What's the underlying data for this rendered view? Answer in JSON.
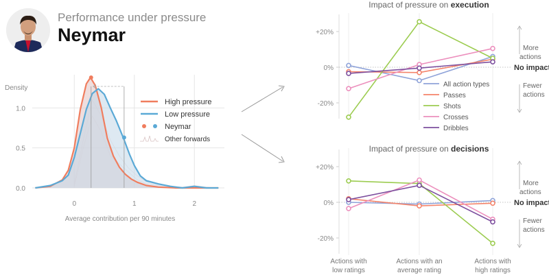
{
  "header": {
    "subtitle": "Performance under pressure",
    "player_name": "Neymar",
    "avatar_icon": "player-photo-icon"
  },
  "colors": {
    "high_pressure": "#f07d5e",
    "low_pressure": "#5aa9d6",
    "all_actions": "#8fa3d9",
    "passes": "#f4836a",
    "shots": "#9ccc50",
    "crosses": "#ec8fbd",
    "dribbles": "#7d4f9e",
    "density_fill": "#d4cdce",
    "axis_text": "#888888"
  },
  "chart_data": [
    {
      "id": "density",
      "type": "area",
      "title": "",
      "ylabel": "Density",
      "xlabel": "Average contribution per 90 minutes",
      "xlim": [
        -0.7,
        2.5
      ],
      "ylim": [
        0,
        1.5
      ],
      "xticks": [
        "0",
        "1",
        "2"
      ],
      "yticks": [
        "0.0",
        "0.5",
        "1.0"
      ],
      "series": [
        {
          "name": "High pressure",
          "x": [
            -0.65,
            -0.4,
            -0.2,
            -0.1,
            0.0,
            0.1,
            0.2,
            0.27,
            0.35,
            0.45,
            0.55,
            0.65,
            0.75,
            0.85,
            0.95,
            1.05,
            1.2,
            1.4,
            1.7,
            2.0,
            2.4
          ],
          "y": [
            0.0,
            0.02,
            0.1,
            0.22,
            0.5,
            0.98,
            1.3,
            1.38,
            1.28,
            1.0,
            0.62,
            0.4,
            0.26,
            0.17,
            0.11,
            0.07,
            0.03,
            0.01,
            0.0,
            0.0,
            0.0
          ]
        },
        {
          "name": "Low pressure",
          "x": [
            -0.65,
            -0.4,
            -0.2,
            -0.1,
            0.0,
            0.1,
            0.2,
            0.3,
            0.4,
            0.5,
            0.6,
            0.7,
            0.82,
            0.92,
            1.0,
            1.1,
            1.2,
            1.4,
            1.6,
            1.8,
            2.0,
            2.2,
            2.4
          ],
          "y": [
            0.0,
            0.03,
            0.09,
            0.16,
            0.38,
            0.68,
            0.98,
            1.18,
            1.24,
            1.17,
            1.0,
            0.84,
            0.62,
            0.42,
            0.28,
            0.15,
            0.09,
            0.05,
            0.02,
            0.0,
            0.02,
            0.0,
            0.0
          ]
        }
      ],
      "markers": [
        {
          "series": "High pressure",
          "x": 0.28,
          "y": 1.38
        },
        {
          "series": "Low pressure",
          "x": 0.83,
          "y": 0.63
        }
      ],
      "legend": {
        "placement": "right",
        "entries": [
          {
            "label": "High pressure",
            "kind": "line",
            "color_key": "high_pressure"
          },
          {
            "label": "Low pressure",
            "kind": "line",
            "color_key": "low_pressure"
          },
          {
            "label": "Neymar",
            "kind": "dots"
          },
          {
            "label": "Other forwards",
            "kind": "spiky-line"
          }
        ]
      }
    },
    {
      "id": "execution",
      "type": "line",
      "title_prefix": "Impact of pressure on ",
      "title_bold": "execution",
      "categories": [
        "Actions with low ratings",
        "Actions with an average rating",
        "Actions with high ratings"
      ],
      "ylim": [
        -30,
        30
      ],
      "yticks": [
        "+20%",
        "0%",
        "-20%"
      ],
      "series": [
        {
          "name": "All action types",
          "values": [
            1,
            -7.5,
            6
          ]
        },
        {
          "name": "Passes",
          "values": [
            -2.5,
            -3,
            4.5
          ]
        },
        {
          "name": "Shots",
          "values": [
            -28,
            25.5,
            5
          ]
        },
        {
          "name": "Crosses",
          "values": [
            -12,
            1.5,
            10.5
          ]
        },
        {
          "name": "Dribbles",
          "values": [
            -3.5,
            -0.5,
            3
          ]
        }
      ],
      "legend": {
        "placement": "bottom-right",
        "entries": [
          {
            "label": "All action types",
            "color_key": "all_actions"
          },
          {
            "label": "Passes",
            "color_key": "passes"
          },
          {
            "label": "Shots",
            "color_key": "shots"
          },
          {
            "label": "Crosses",
            "color_key": "crosses"
          },
          {
            "label": "Dribbles",
            "color_key": "dribbles"
          }
        ]
      },
      "annotations": {
        "more": "More actions",
        "fewer": "Fewer actions",
        "no_impact": "No impact"
      }
    },
    {
      "id": "decisions",
      "type": "line",
      "title_prefix": "Impact of pressure on ",
      "title_bold": "decisions",
      "categories": [
        "Actions with low ratings",
        "Actions with an average rating",
        "Actions with high ratings"
      ],
      "ylim": [
        -30,
        30
      ],
      "yticks": [
        "+20%",
        "0%",
        "-20%"
      ],
      "series": [
        {
          "name": "All action types",
          "values": [
            0,
            -1,
            1
          ]
        },
        {
          "name": "Passes",
          "values": [
            2,
            -2,
            -0.5
          ]
        },
        {
          "name": "Shots",
          "values": [
            12,
            10.5,
            -23
          ]
        },
        {
          "name": "Crosses",
          "values": [
            -3.5,
            12.5,
            -9.5
          ]
        },
        {
          "name": "Dribbles",
          "values": [
            1.5,
            9.5,
            -11
          ]
        }
      ],
      "annotations": {
        "more": "More actions",
        "fewer": "Fewer actions",
        "no_impact": "No impact"
      }
    }
  ],
  "labels": {
    "tick_low": [
      "Actions with",
      "low ratings"
    ],
    "tick_avg": [
      "Actions with an",
      "average rating"
    ],
    "tick_high": [
      "Actions with",
      "high ratings"
    ],
    "more_lines": [
      "More",
      "actions"
    ],
    "fewer_lines": [
      "Fewer",
      "actions"
    ]
  }
}
